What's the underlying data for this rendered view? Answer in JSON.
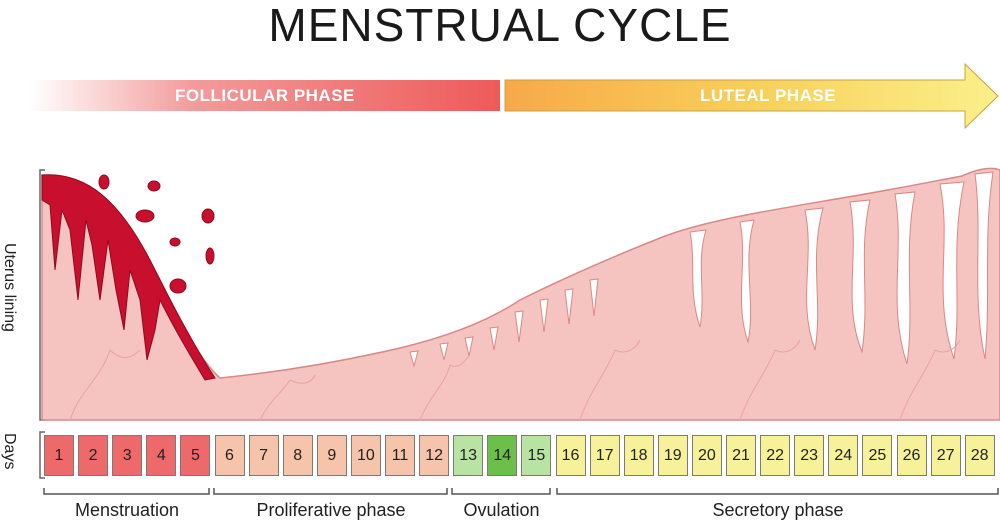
{
  "title": "MENSTRUAL CYCLE",
  "phases": {
    "follicular": "FOLLICULAR PHASE",
    "luteal": "LUTEAL PHASE"
  },
  "axis": {
    "uterus_label": "Uterus lining",
    "days_label": "Days"
  },
  "days": [
    {
      "n": "1",
      "color": "#ee6a6a"
    },
    {
      "n": "2",
      "color": "#ee6a6a"
    },
    {
      "n": "3",
      "color": "#ee6a6a"
    },
    {
      "n": "4",
      "color": "#ee6a6a"
    },
    {
      "n": "5",
      "color": "#ee6a6a"
    },
    {
      "n": "6",
      "color": "#f6c3ab"
    },
    {
      "n": "7",
      "color": "#f6c3ab"
    },
    {
      "n": "8",
      "color": "#f6c3ab"
    },
    {
      "n": "9",
      "color": "#f6c3ab"
    },
    {
      "n": "10",
      "color": "#f6c3ab"
    },
    {
      "n": "11",
      "color": "#f6c3ab"
    },
    {
      "n": "12",
      "color": "#f6c3ab"
    },
    {
      "n": "13",
      "color": "#b9e3a2"
    },
    {
      "n": "14",
      "color": "#6cc04a"
    },
    {
      "n": "15",
      "color": "#b9e3a2"
    },
    {
      "n": "16",
      "color": "#f7f29a"
    },
    {
      "n": "17",
      "color": "#f7f29a"
    },
    {
      "n": "18",
      "color": "#f7f29a"
    },
    {
      "n": "19",
      "color": "#f7f29a"
    },
    {
      "n": "20",
      "color": "#f7f29a"
    },
    {
      "n": "21",
      "color": "#f7f29a"
    },
    {
      "n": "22",
      "color": "#f7f29a"
    },
    {
      "n": "23",
      "color": "#f7f29a"
    },
    {
      "n": "24",
      "color": "#f7f29a"
    },
    {
      "n": "25",
      "color": "#f7f29a"
    },
    {
      "n": "26",
      "color": "#f7f29a"
    },
    {
      "n": "27",
      "color": "#f7f29a"
    },
    {
      "n": "28",
      "color": "#f7f29a"
    }
  ],
  "groups": {
    "menstruation": "Menstruation",
    "proliferative": "Proliferative phase",
    "ovulation": "Ovulation",
    "secretory": "Secretory phase"
  },
  "colors": {
    "lining": "#f6c4c0",
    "lining_edge": "#d88888",
    "blood": "#c8102e",
    "follicular_arrow": "#ee5a5a",
    "luteal_arrow": "#f7e15a"
  }
}
